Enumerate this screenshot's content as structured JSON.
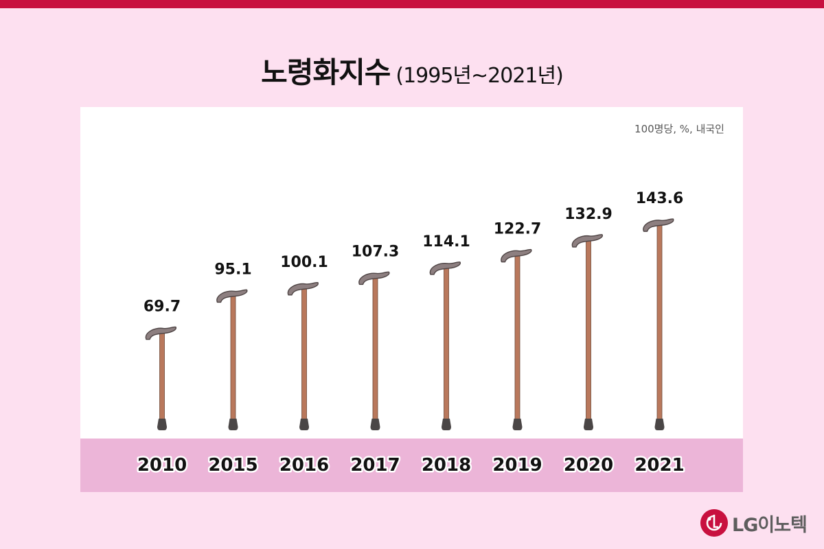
{
  "header": {
    "title": "노령화지수",
    "subtitle": "(1995년~2021년)"
  },
  "chart_data": {
    "type": "bar",
    "title": "노령화지수 (1995년~2021년)",
    "unit": "100명당, %, 내국인",
    "categories": [
      "2010",
      "2015",
      "2016",
      "2017",
      "2018",
      "2019",
      "2020",
      "2021"
    ],
    "values": [
      69.7,
      95.1,
      100.1,
      107.3,
      114.1,
      122.7,
      132.9,
      143.6
    ],
    "value_labels": [
      "69.7",
      "95.1",
      "100.1",
      "107.3",
      "114.1",
      "122.7",
      "132.9",
      "143.6"
    ],
    "bar_style": "walking-cane",
    "grid": false,
    "legend": "none"
  },
  "logo": {
    "text": "LG이노텍"
  },
  "colors": {
    "background": "#fde0f0",
    "accent_bar": "#c8103f",
    "panel": "#ffffff",
    "category_band": "#ecb5d8",
    "cane_shaft": "#b9785c",
    "cane_handle": "#8d7f80",
    "cane_tip": "#4a4646",
    "logo_red": "#c8103f",
    "logo_gray": "#5d5d5d"
  }
}
